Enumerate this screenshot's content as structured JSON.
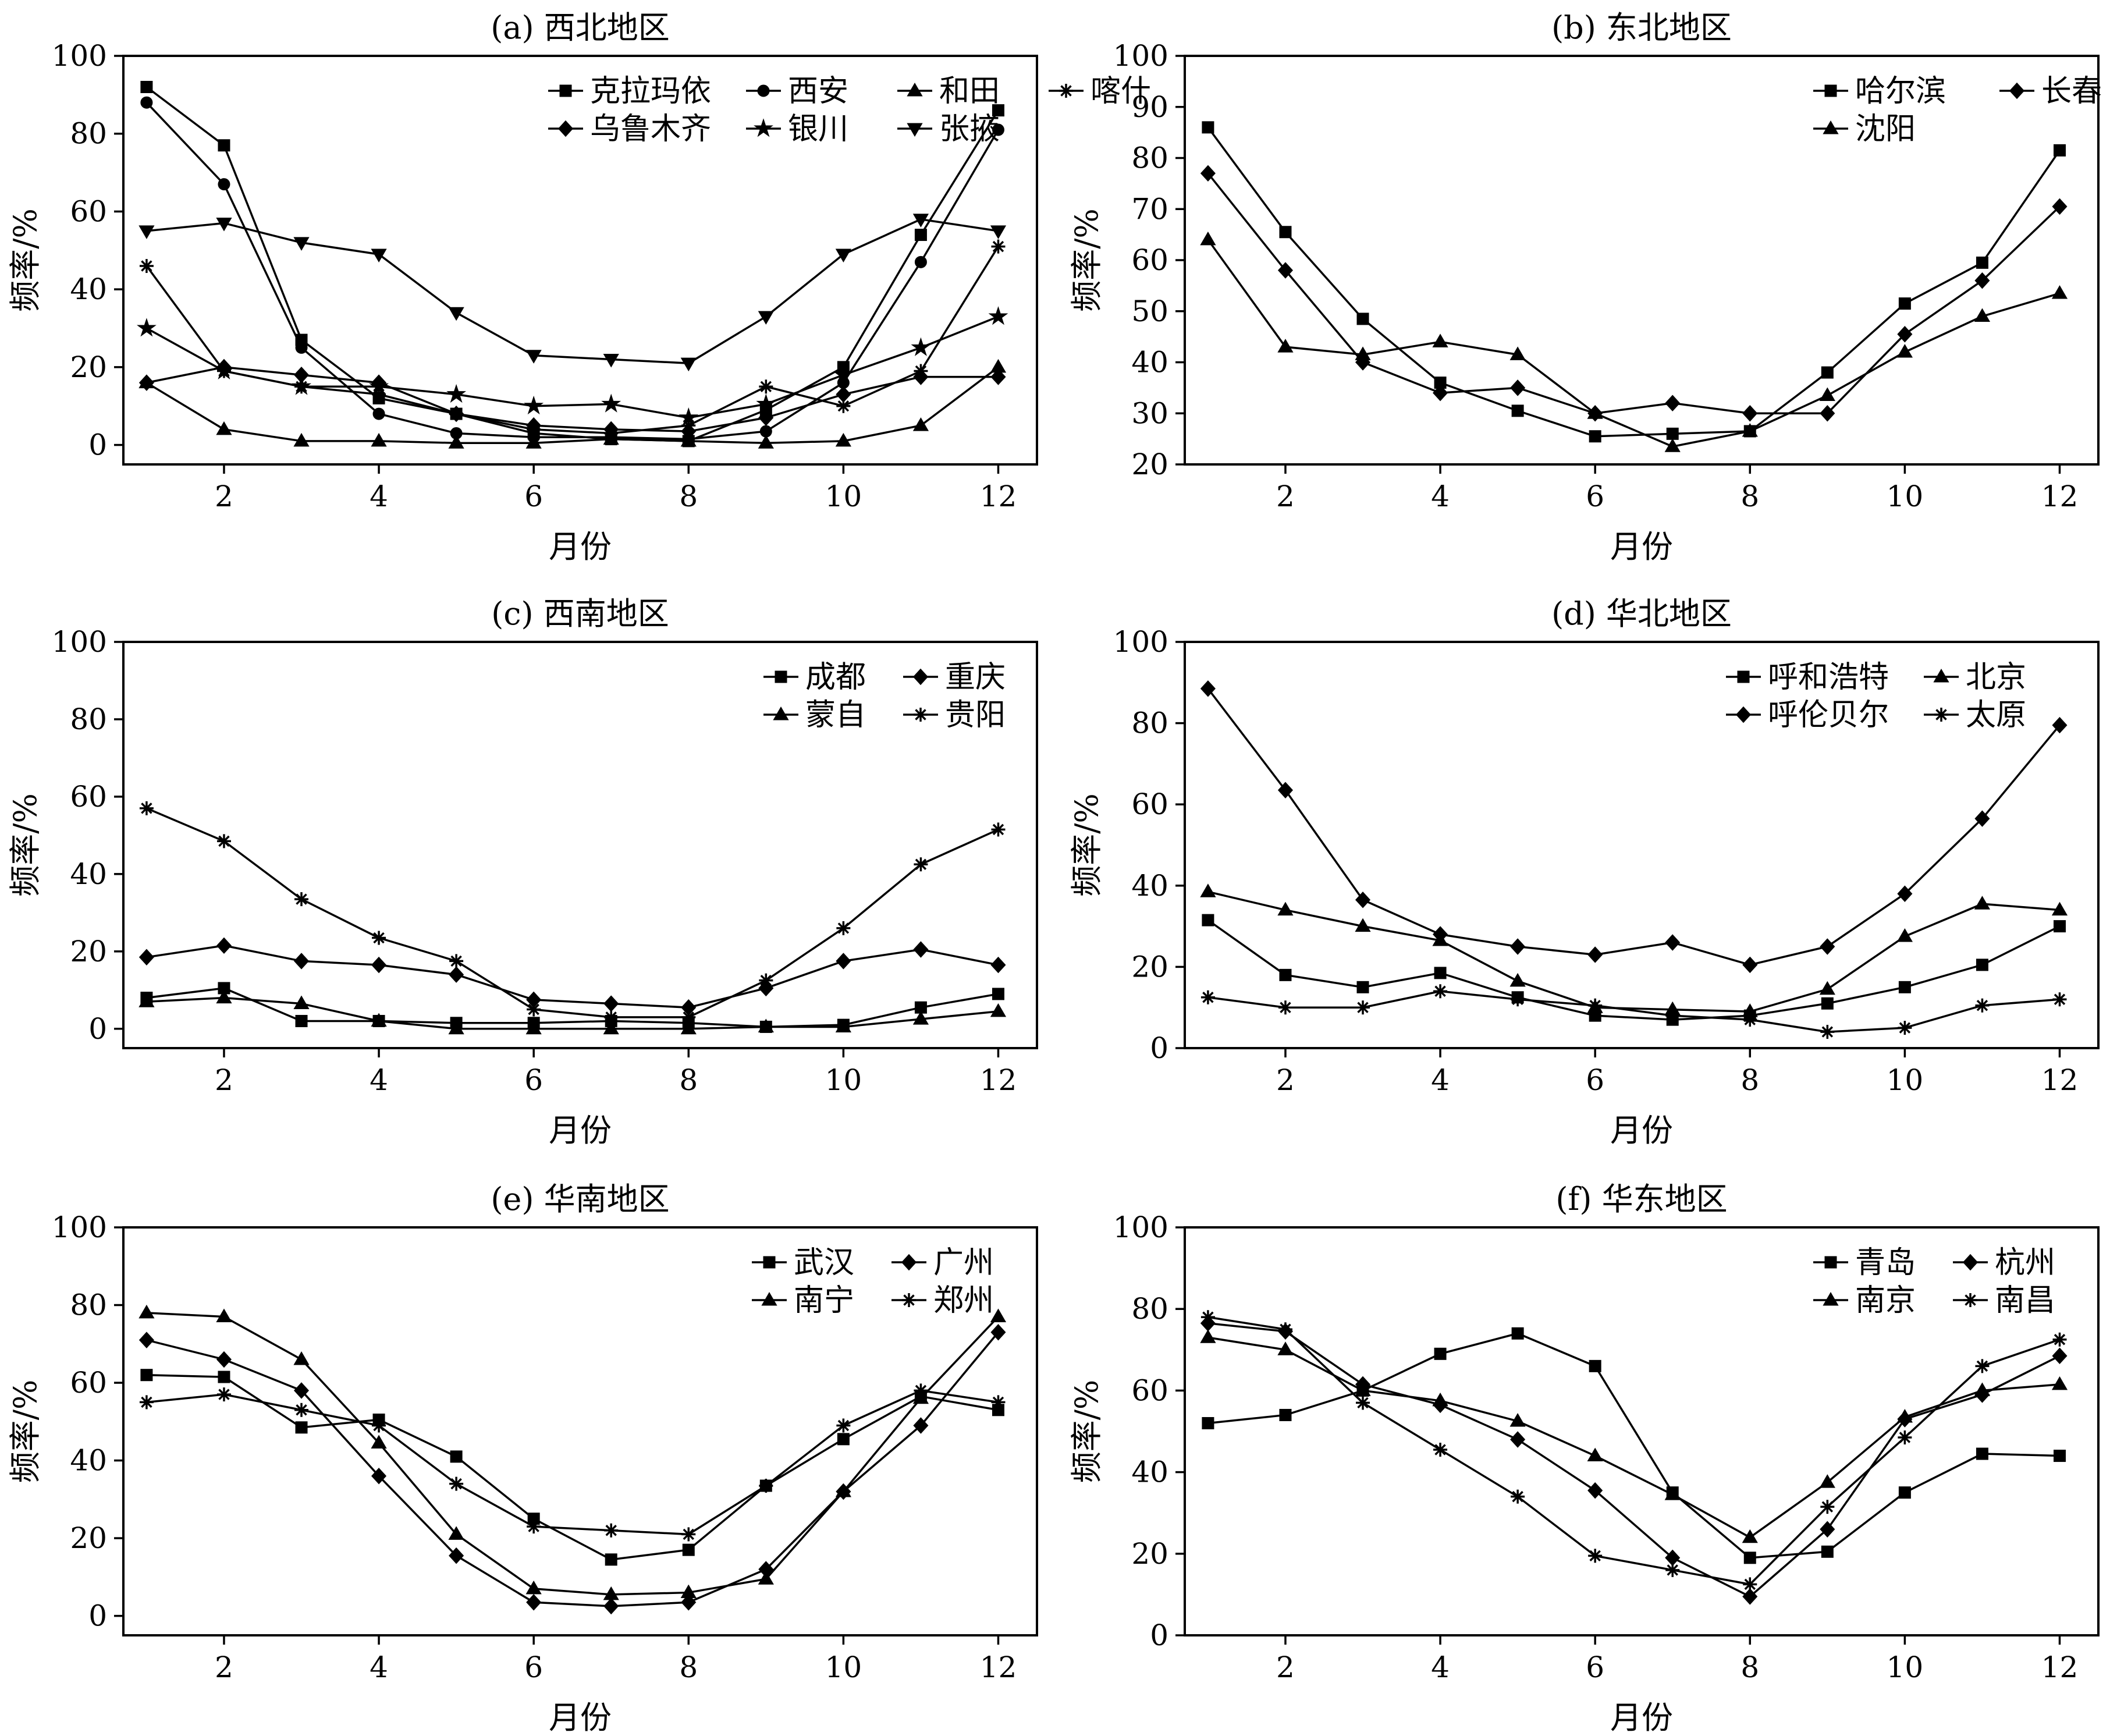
{
  "chart_data": [
    {
      "type": "line",
      "title": "(a) 西北地区",
      "xlabel": "月份",
      "ylabel": "频率/%",
      "xlim": [
        0.7,
        12.5
      ],
      "ylim": [
        -5,
        100
      ],
      "xticks": [
        2,
        4,
        6,
        8,
        10,
        12
      ],
      "yticks": [
        0,
        20,
        40,
        60,
        80,
        100
      ],
      "legend_position": "top-right",
      "x": [
        1,
        2,
        3,
        4,
        5,
        6,
        7,
        8,
        9,
        10,
        11,
        12
      ],
      "series": [
        {
          "name": "克拉玛依",
          "marker": "square",
          "values": [
            92,
            77,
            27,
            12,
            8,
            3,
            1.5,
            1,
            9,
            20,
            54,
            86
          ]
        },
        {
          "name": "西安",
          "marker": "circle",
          "values": [
            88,
            67,
            25,
            8,
            3,
            2,
            2,
            1.5,
            3.5,
            16,
            47,
            81
          ]
        },
        {
          "name": "和田",
          "marker": "triangle",
          "values": [
            16,
            4,
            1,
            1,
            0.5,
            0.5,
            1.5,
            1,
            0.5,
            1,
            5,
            20
          ]
        },
        {
          "name": "喀什",
          "marker": "asterisk",
          "values": [
            46,
            19,
            15,
            13,
            8,
            4,
            3,
            5,
            15,
            10,
            19,
            51
          ]
        },
        {
          "name": "乌鲁木齐",
          "marker": "diamond",
          "values": [
            16,
            20,
            18,
            16,
            8,
            5,
            4,
            3.5,
            7,
            13,
            17.5,
            17.5
          ]
        },
        {
          "name": "银川",
          "marker": "star",
          "values": [
            30,
            19,
            15,
            15,
            13,
            10,
            10.5,
            7,
            10.5,
            18,
            25,
            33
          ]
        },
        {
          "name": "张掖",
          "marker": "triangle-down",
          "values": [
            55,
            57,
            52,
            49,
            34,
            23,
            22,
            21,
            33,
            49,
            58,
            55
          ]
        }
      ]
    },
    {
      "type": "line",
      "title": "(b) 东北地区",
      "xlabel": "月份",
      "ylabel": "频率/%",
      "xlim": [
        0.7,
        12.5
      ],
      "ylim": [
        20,
        100
      ],
      "xticks": [
        2,
        4,
        6,
        8,
        10,
        12
      ],
      "yticks": [
        20,
        30,
        40,
        50,
        60,
        70,
        80,
        90,
        100
      ],
      "legend_position": "top-right",
      "x": [
        1,
        2,
        3,
        4,
        5,
        6,
        7,
        8,
        9,
        10,
        11,
        12
      ],
      "series": [
        {
          "name": "哈尔滨",
          "marker": "square",
          "values": [
            86,
            65.5,
            48.5,
            36,
            30.5,
            25.5,
            26,
            26.5,
            38,
            51.5,
            59.5,
            81.5
          ]
        },
        {
          "name": "长春",
          "marker": "diamond",
          "values": [
            77,
            58,
            40,
            34,
            35,
            30,
            32,
            30,
            30,
            45.5,
            56,
            70.5
          ]
        },
        {
          "name": "沈阳",
          "marker": "triangle",
          "values": [
            64,
            43,
            41.5,
            44,
            41.5,
            30,
            23.5,
            26.5,
            33.5,
            42,
            49,
            53.5
          ]
        }
      ]
    },
    {
      "type": "line",
      "title": "(c) 西南地区",
      "xlabel": "月份",
      "ylabel": "频率/%",
      "xlim": [
        0.7,
        12.5
      ],
      "ylim": [
        -5,
        100
      ],
      "xticks": [
        2,
        4,
        6,
        8,
        10,
        12
      ],
      "yticks": [
        0,
        20,
        40,
        60,
        80,
        100
      ],
      "legend_position": "top-right",
      "x": [
        1,
        2,
        3,
        4,
        5,
        6,
        7,
        8,
        9,
        10,
        11,
        12
      ],
      "series": [
        {
          "name": "成都",
          "marker": "square",
          "values": [
            8,
            10.5,
            2,
            2,
            1.5,
            1.5,
            2,
            1.5,
            0.5,
            1,
            5.5,
            9
          ]
        },
        {
          "name": "重庆",
          "marker": "diamond",
          "values": [
            18.5,
            21.5,
            17.5,
            16.5,
            14,
            7.5,
            6.5,
            5.5,
            10.5,
            17.5,
            20.5,
            16.5
          ]
        },
        {
          "name": "蒙自",
          "marker": "triangle",
          "values": [
            7,
            8,
            6.5,
            2,
            0,
            0,
            0,
            0,
            0.5,
            0.5,
            2.5,
            4.5
          ]
        },
        {
          "name": "贵阳",
          "marker": "asterisk",
          "values": [
            57,
            48.5,
            33.5,
            23.5,
            17.5,
            5,
            3,
            3,
            12.5,
            26,
            42.5,
            51.5
          ]
        }
      ]
    },
    {
      "type": "line",
      "title": "(d) 华北地区",
      "xlabel": "月份",
      "ylabel": "频率/%",
      "xlim": [
        0.7,
        12.5
      ],
      "ylim": [
        0,
        100
      ],
      "xticks": [
        2,
        4,
        6,
        8,
        10,
        12
      ],
      "yticks": [
        0,
        20,
        40,
        60,
        80,
        100
      ],
      "legend_position": "top-right",
      "x": [
        1,
        2,
        3,
        4,
        5,
        6,
        7,
        8,
        9,
        10,
        11,
        12
      ],
      "series": [
        {
          "name": "呼和浩特",
          "marker": "square",
          "values": [
            31.5,
            18,
            15,
            18.5,
            12.5,
            8,
            7,
            8,
            11,
            15,
            20.5,
            30
          ]
        },
        {
          "name": "北京",
          "marker": "triangle",
          "values": [
            38.5,
            34,
            30,
            26.5,
            16.5,
            10,
            9.5,
            9,
            14.5,
            27.5,
            35.5,
            34
          ]
        },
        {
          "name": "呼伦贝尔",
          "marker": "diamond",
          "values": [
            88.5,
            63.5,
            36.5,
            28,
            25,
            23,
            26,
            20.5,
            25,
            38,
            56.5,
            79.5
          ]
        },
        {
          "name": "太原",
          "marker": "asterisk",
          "values": [
            12.5,
            10,
            10,
            14,
            12,
            10.5,
            8,
            7,
            4,
            5,
            10.5,
            12
          ]
        }
      ]
    },
    {
      "type": "line",
      "title": "(e) 华南地区",
      "xlabel": "月份",
      "ylabel": "频率/%",
      "xlim": [
        0.7,
        12.5
      ],
      "ylim": [
        -5,
        100
      ],
      "xticks": [
        2,
        4,
        6,
        8,
        10,
        12
      ],
      "yticks": [
        0,
        20,
        40,
        60,
        80,
        100
      ],
      "legend_position": "top-right",
      "x": [
        1,
        2,
        3,
        4,
        5,
        6,
        7,
        8,
        9,
        10,
        11,
        12
      ],
      "series": [
        {
          "name": "武汉",
          "marker": "square",
          "values": [
            62,
            61.5,
            48.5,
            50.5,
            41,
            25,
            14.5,
            17,
            33.5,
            45.5,
            56.5,
            53
          ]
        },
        {
          "name": "广州",
          "marker": "diamond",
          "values": [
            71,
            66,
            58,
            36,
            15.5,
            3.5,
            2.5,
            3.5,
            12,
            32,
            49,
            73
          ]
        },
        {
          "name": "南宁",
          "marker": "triangle",
          "values": [
            78,
            77,
            66,
            44.5,
            21,
            7,
            5.5,
            6,
            9.5,
            32,
            56,
            77
          ]
        },
        {
          "name": "郑州",
          "marker": "asterisk",
          "values": [
            55,
            57,
            53,
            49,
            34,
            23,
            22,
            21,
            33.5,
            49,
            58,
            55
          ]
        }
      ]
    },
    {
      "type": "line",
      "title": "(f) 华东地区",
      "xlabel": "月份",
      "ylabel": "频率/%",
      "xlim": [
        0.7,
        12.5
      ],
      "ylim": [
        0,
        100
      ],
      "xticks": [
        2,
        4,
        6,
        8,
        10,
        12
      ],
      "yticks": [
        0,
        20,
        40,
        60,
        80,
        100
      ],
      "legend_position": "top-right",
      "x": [
        1,
        2,
        3,
        4,
        5,
        6,
        7,
        8,
        9,
        10,
        11,
        12
      ],
      "series": [
        {
          "name": "青岛",
          "marker": "square",
          "values": [
            52,
            54,
            60,
            69,
            74,
            66,
            35,
            19,
            20.5,
            35,
            44.5,
            44
          ]
        },
        {
          "name": "杭州",
          "marker": "diamond",
          "values": [
            76.5,
            74.5,
            61.5,
            56.5,
            48,
            35.5,
            19,
            9.5,
            26,
            53,
            59,
            68.5
          ]
        },
        {
          "name": "南京",
          "marker": "triangle",
          "values": [
            73,
            70,
            60,
            57.5,
            52.5,
            44,
            34.5,
            24,
            37.5,
            53.5,
            60,
            61.5
          ]
        },
        {
          "name": "南昌",
          "marker": "asterisk",
          "values": [
            78,
            75,
            57,
            45.5,
            34,
            19.5,
            16,
            12.5,
            31.5,
            48.5,
            66,
            72.5
          ]
        }
      ]
    }
  ]
}
